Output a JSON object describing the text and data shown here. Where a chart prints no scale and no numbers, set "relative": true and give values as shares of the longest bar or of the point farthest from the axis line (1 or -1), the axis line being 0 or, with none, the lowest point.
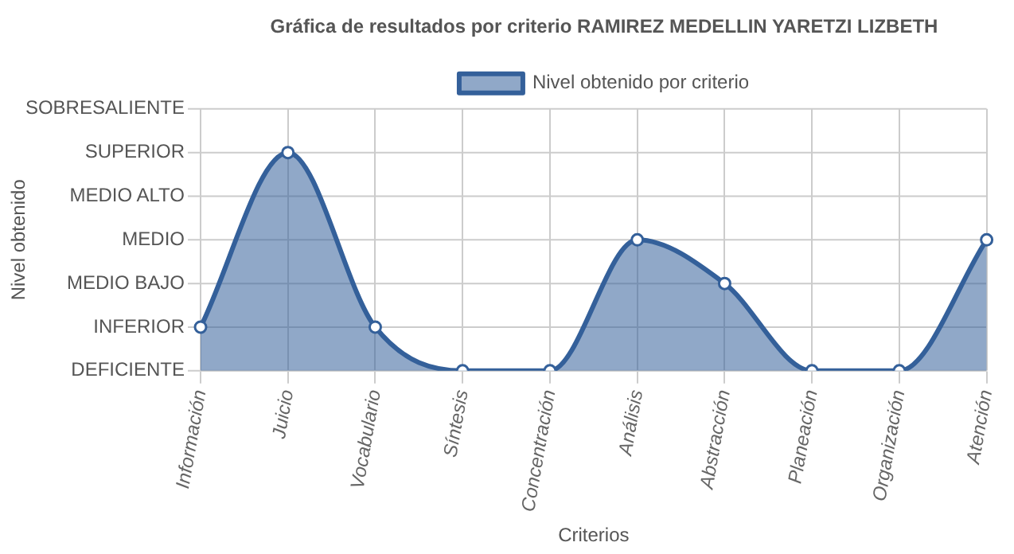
{
  "chart_data": {
    "type": "area",
    "title": "Gráfica de resultados por criterio RAMIREZ MEDELLIN YARETZI LIZBETH",
    "xlabel": "Criterios",
    "annotations": [
      "Nivel obtenido"
    ],
    "categories": [
      "Información",
      "Juicio",
      "Vocabulario",
      "Síntesis",
      "Concentración",
      "Análisis",
      "Abstracción",
      "Planeación",
      "Organización",
      "Atención"
    ],
    "relative": true,
    "series": [
      {
        "name": "Nivel obtenido por criterio",
        "color": "#34609a",
        "values": [
          0.2,
          1,
          0.2,
          0,
          0,
          0.6,
          0.4,
          0,
          0,
          0.6
        ]
      }
    ],
    "ref_lines": [
      {
        "axis": "y",
        "value": 0,
        "label": "DEFICIENTE"
      },
      {
        "axis": "y",
        "value": 0.2,
        "label": "INFERIOR"
      },
      {
        "axis": "y",
        "value": 0.4,
        "label": "MEDIO BAJO"
      },
      {
        "axis": "y",
        "value": 0.6,
        "label": "MEDIO"
      },
      {
        "axis": "y",
        "value": 0.8,
        "label": "MEDIO ALTO"
      },
      {
        "axis": "y",
        "value": 1,
        "label": "SUPERIOR"
      },
      {
        "axis": "y",
        "value": 1.2,
        "label": "SOBRESALIENTE"
      }
    ],
    "grid": "x",
    "legend": "top",
    "marker": "circle",
    "line_style": "solid"
  }
}
